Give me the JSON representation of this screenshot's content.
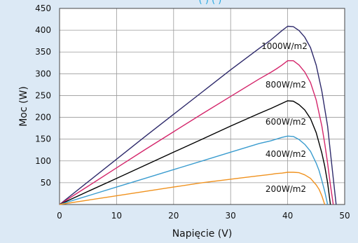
{
  "chart_data": {
    "type": "line",
    "title": "",
    "partial_top_text": "(    )                (    )",
    "xlabel": "Napięcie (V)",
    "ylabel": "Moc (W)",
    "xlim": [
      0,
      50
    ],
    "ylim": [
      0,
      450
    ],
    "xticks": [
      0,
      10,
      20,
      30,
      40,
      50
    ],
    "yticks": [
      50,
      100,
      150,
      200,
      250,
      300,
      350,
      400,
      450
    ],
    "grid": true,
    "series": [
      {
        "name": "1000W/m2",
        "color": "#2e2a6b",
        "x": [
          0,
          5,
          10,
          15,
          20,
          25,
          30,
          35,
          37,
          38,
          39,
          40,
          41,
          42,
          43,
          44,
          45,
          46,
          47,
          47.5,
          48,
          48.5
        ],
        "y": [
          0,
          52,
          104,
          156,
          207,
          258,
          309,
          358,
          377,
          388,
          399,
          409,
          408,
          399,
          384,
          360,
          320,
          260,
          180,
          120,
          60,
          0
        ]
      },
      {
        "name": "800W/m2",
        "color": "#d4266b",
        "x": [
          0,
          5,
          10,
          15,
          20,
          25,
          30,
          35,
          37,
          38,
          39,
          40,
          41,
          42,
          43,
          44,
          45,
          46,
          46.5,
          47,
          47.5,
          48
        ],
        "y": [
          0,
          42,
          84,
          126,
          167,
          208,
          248,
          288,
          303,
          311,
          320,
          330,
          330,
          320,
          304,
          280,
          240,
          180,
          140,
          95,
          45,
          0
        ]
      },
      {
        "name": "600W/m2",
        "color": "#000000",
        "x": [
          0,
          5,
          10,
          15,
          20,
          25,
          30,
          35,
          37,
          38,
          39,
          40,
          41,
          42,
          43,
          44,
          45,
          46,
          46.5,
          47,
          47.5
        ],
        "y": [
          0,
          30,
          60,
          90,
          120,
          150,
          180,
          209,
          220,
          226,
          232,
          238,
          237,
          229,
          217,
          197,
          165,
          118,
          88,
          50,
          0
        ]
      },
      {
        "name": "400W/m2",
        "color": "#3a9ccf",
        "x": [
          0,
          5,
          10,
          15,
          20,
          25,
          30,
          35,
          37,
          38,
          39,
          40,
          41,
          42,
          43,
          44,
          45,
          45.5,
          46,
          46.5,
          47
        ],
        "y": [
          0,
          20,
          40,
          60,
          80,
          100,
          120,
          140,
          146,
          150,
          154,
          157,
          156,
          149,
          138,
          122,
          95,
          78,
          55,
          30,
          0
        ]
      },
      {
        "name": "200W/m2",
        "color": "#f0921e",
        "x": [
          0,
          5,
          10,
          15,
          20,
          25,
          30,
          35,
          37,
          38,
          39,
          40,
          41,
          42,
          43,
          44,
          45,
          45.5,
          46,
          46.5
        ],
        "y": [
          0,
          10,
          20,
          30,
          40,
          50,
          58,
          66,
          69,
          71,
          72,
          74,
          74,
          73,
          68,
          60,
          45,
          35,
          20,
          0
        ]
      }
    ]
  }
}
